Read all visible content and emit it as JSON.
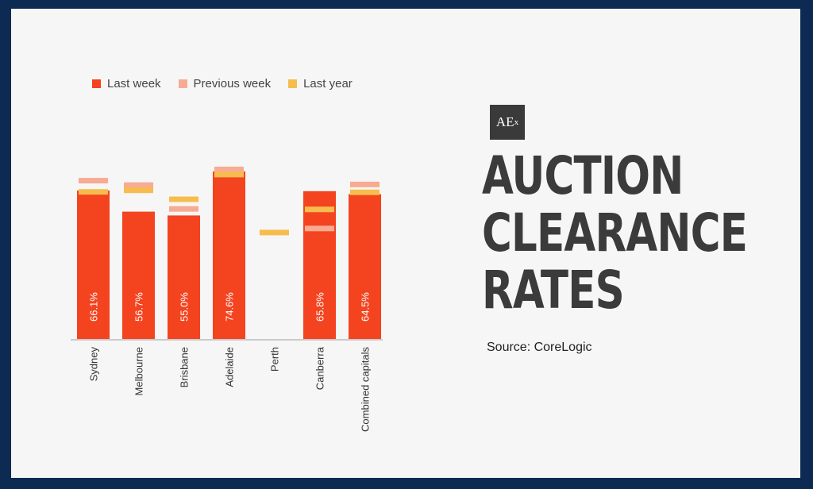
{
  "colors": {
    "frame": "#0d2a52",
    "background": "#f6f6f6",
    "last_week": "#f4431f",
    "previous_week": "#f7ab92",
    "last_year": "#f6bd4e",
    "axis": "#bbbbbb",
    "label_text": "#ffffff",
    "title_text": "#3b3b3b"
  },
  "legend": {
    "last_week": "Last week",
    "previous_week": "Previous week",
    "last_year": "Last year"
  },
  "logo": {
    "main": "AE",
    "sub": "x",
    "icon": "aex-logo"
  },
  "title_lines": [
    "AUCTION",
    "CLEARANCE",
    "RATES"
  ],
  "source": "Source: CoreLogic",
  "chart_data": {
    "type": "bar",
    "categories": [
      "Sydney",
      "Melbourne",
      "Brisbane",
      "Adelaide",
      "Perth",
      "Canberra",
      "Combined capitals"
    ],
    "series": [
      {
        "name": "Last week",
        "values": [
          66.1,
          56.7,
          55.0,
          74.6,
          null,
          65.8,
          64.5
        ]
      },
      {
        "name": "Previous week",
        "values": [
          70.5,
          68.5,
          57.9,
          75.5,
          null,
          49.2,
          68.8
        ]
      },
      {
        "name": "Last year",
        "values": [
          65.5,
          66.2,
          62.2,
          73.2,
          47.4,
          57.7,
          65.3
        ]
      }
    ],
    "data_labels": [
      "66.1%",
      "56.7%",
      "55.0%",
      "74.6%",
      "",
      "65.8%",
      "64.5%"
    ],
    "ylim": [
      0,
      76
    ],
    "grid": false,
    "legend_position": "top-left"
  }
}
